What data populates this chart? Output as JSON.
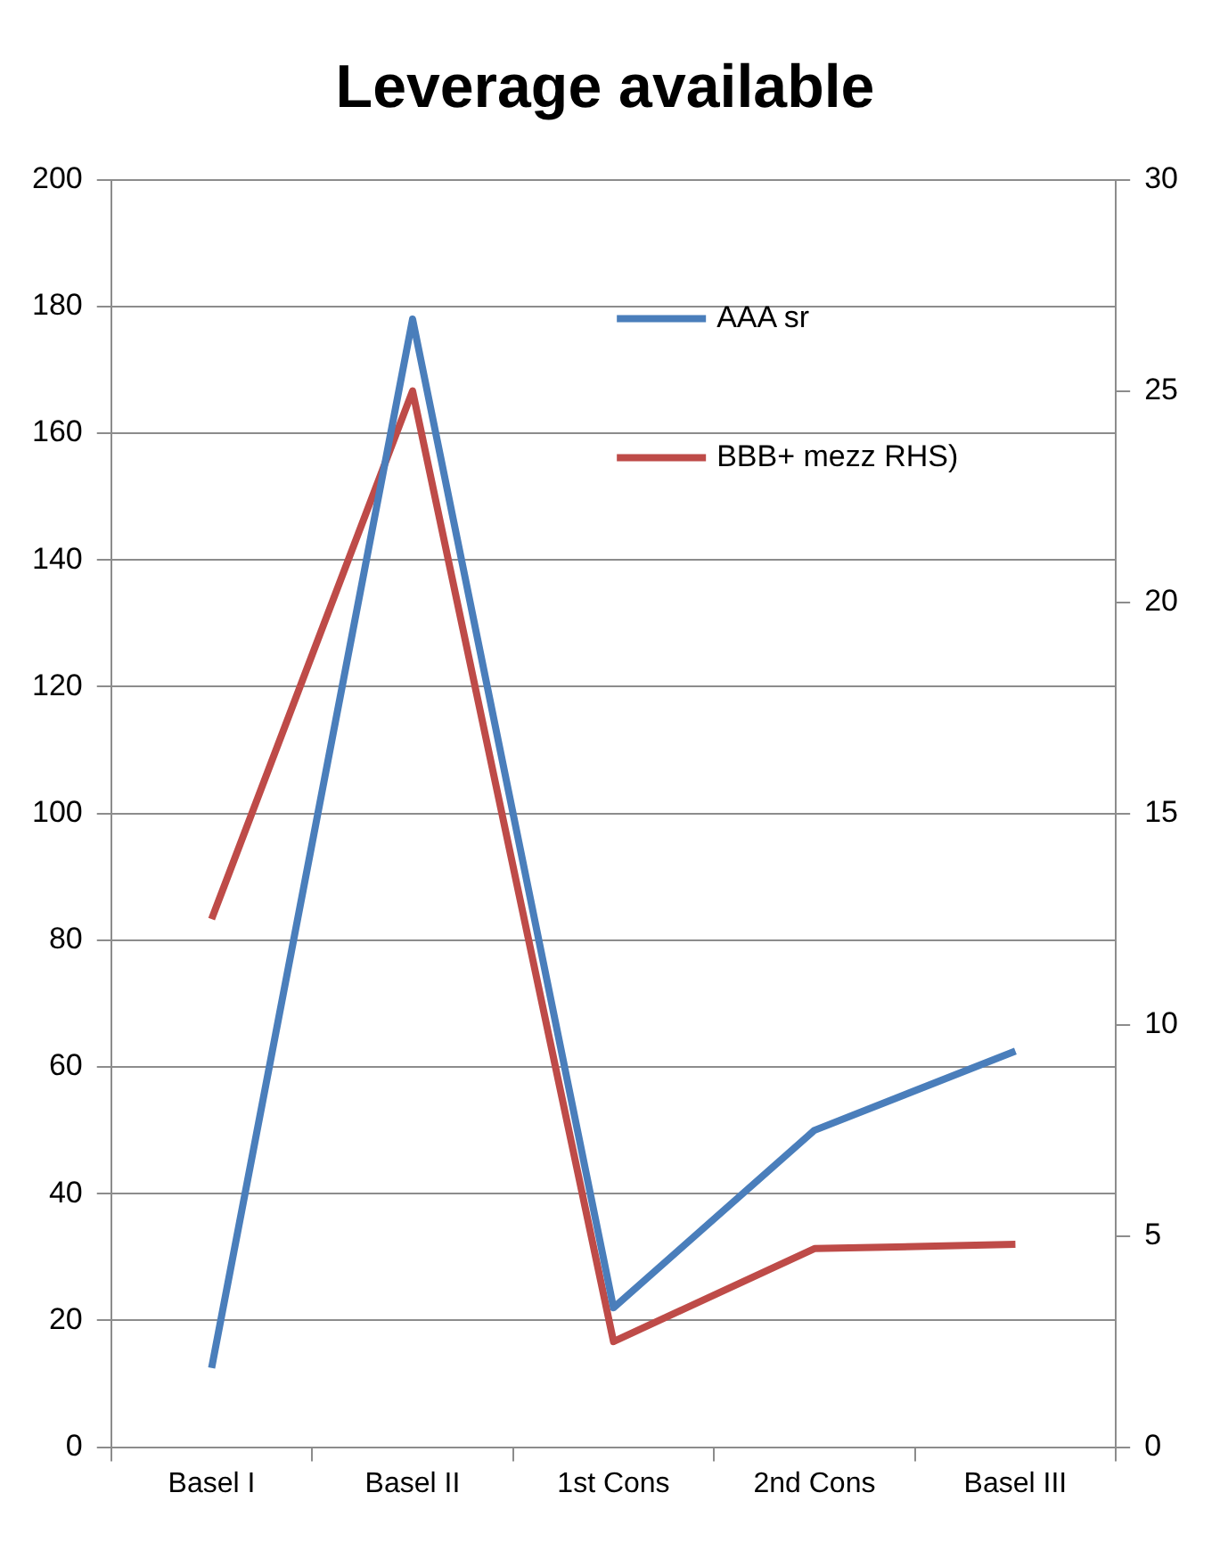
{
  "chart_data": {
    "type": "line",
    "title": "Leverage available",
    "categories": [
      "Basel I",
      "Basel II",
      "1st Cons",
      "2nd Cons",
      "Basel III"
    ],
    "series": [
      {
        "name": "AAA sr",
        "color": "#4a7ebb",
        "values": [
          12.5,
          178,
          22,
          50,
          62.5
        ]
      },
      {
        "name": "BBB+ mezz RHS)",
        "color": "#be4b48",
        "values": [
          12.5,
          25,
          2.5,
          4.7,
          4.8
        ],
        "axis": "y2"
      }
    ],
    "ylim": [
      0,
      200
    ],
    "yticks": [
      0,
      20,
      40,
      60,
      80,
      100,
      120,
      140,
      160,
      180,
      200
    ],
    "y2lim": [
      0,
      30
    ],
    "y2ticks": [
      0,
      5,
      10,
      15,
      20,
      25,
      30
    ],
    "grid": "y",
    "legend": "top right",
    "marker": "none",
    "line_style": "solid"
  }
}
